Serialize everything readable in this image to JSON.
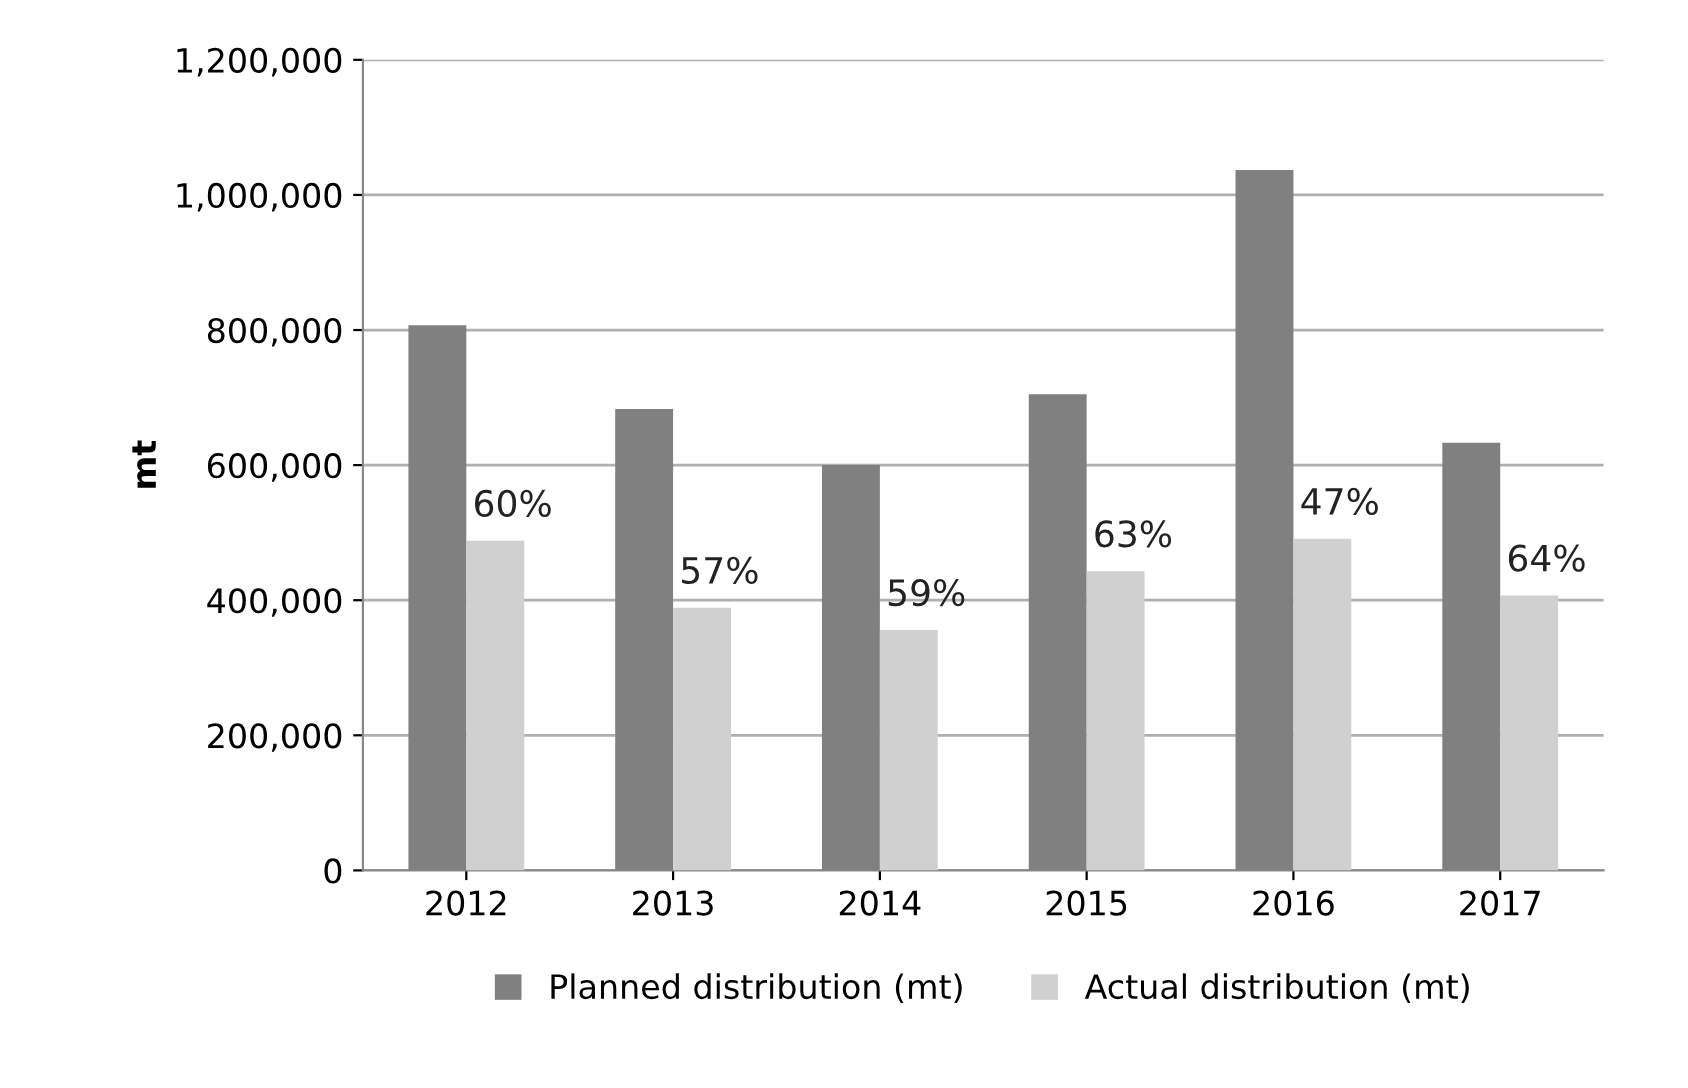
{
  "chart_data": {
    "type": "bar",
    "ylabel": "mt",
    "categories": [
      "2012",
      "2013",
      "2014",
      "2015",
      "2016",
      "2017"
    ],
    "series": [
      {
        "name": "Planned distribution (mt)",
        "color": "#808080",
        "values": [
          807000,
          683000,
          600000,
          705000,
          1037000,
          633000
        ]
      },
      {
        "name": "Actual distribution (mt)",
        "color": "#d0d0d0",
        "values": [
          488000,
          389000,
          356000,
          443000,
          491000,
          407000
        ]
      }
    ],
    "annotations": [
      {
        "text": "60%",
        "x": "2012",
        "y": 488000
      },
      {
        "text": "57%",
        "x": "2013",
        "y": 389000
      },
      {
        "text": "59%",
        "x": "2014",
        "y": 356000
      },
      {
        "text": "63%",
        "x": "2015",
        "y": 443000
      },
      {
        "text": "47%",
        "x": "2016",
        "y": 491000
      },
      {
        "text": "64%",
        "x": "2017",
        "y": 407000
      }
    ],
    "ylim": [
      0,
      1200000
    ],
    "yticks": [
      {
        "value": 0,
        "label": "0"
      },
      {
        "value": 200000,
        "label": "200,000"
      },
      {
        "value": 400000,
        "label": "400,000"
      },
      {
        "value": 600000,
        "label": "600,000"
      },
      {
        "value": 800000,
        "label": "800,000"
      },
      {
        "value": 1000000,
        "label": "1,000,000"
      },
      {
        "value": 1200000,
        "label": "1,200,000"
      }
    ],
    "grid": "y",
    "legend": "bottom"
  }
}
